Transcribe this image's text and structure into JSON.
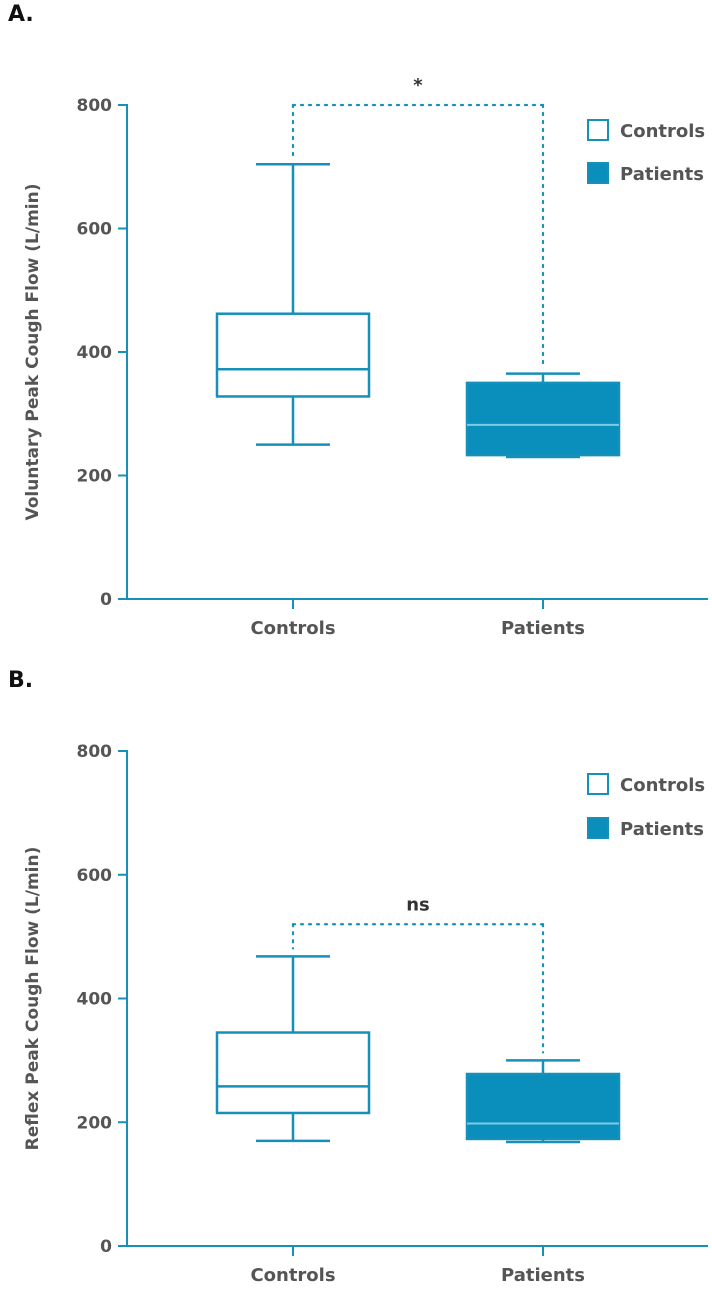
{
  "chart_data": [
    {
      "panel_label": "A.",
      "type": "boxplot",
      "ylabel": "Voluntary Peak Cough Flow (L/min)",
      "ylim": [
        0,
        800
      ],
      "yticks": [
        "0",
        "200",
        "400",
        "600",
        "800"
      ],
      "categories": [
        "Controls",
        "Patients"
      ],
      "series": [
        {
          "name": "Controls",
          "min": 250,
          "q1": 328,
          "median": 372,
          "q3": 462,
          "max": 704,
          "filled": false
        },
        {
          "name": "Patients",
          "min": 230,
          "q1": 233,
          "median": 282,
          "q3": 350,
          "max": 365,
          "filled": true
        }
      ],
      "significance": {
        "label": "*",
        "level": 800
      },
      "legend": {
        "position": "top-right",
        "items": [
          "Controls",
          "Patients"
        ]
      }
    },
    {
      "panel_label": "B.",
      "type": "boxplot",
      "ylabel": "Reflex Peak Cough Flow (L/min)",
      "ylim": [
        0,
        800
      ],
      "yticks": [
        "0",
        "200",
        "400",
        "600",
        "800"
      ],
      "categories": [
        "Controls",
        "Patients"
      ],
      "series": [
        {
          "name": "Controls",
          "min": 170,
          "q1": 215,
          "median": 258,
          "q3": 345,
          "max": 468,
          "filled": false
        },
        {
          "name": "Patients",
          "min": 168,
          "q1": 173,
          "median": 198,
          "q3": 278,
          "max": 300,
          "filled": true
        }
      ],
      "significance": {
        "label": "ns",
        "level": 520
      },
      "legend": {
        "position": "top-right",
        "items": [
          "Controls",
          "Patients"
        ]
      }
    }
  ],
  "colors": {
    "stroke": "#1790b9",
    "fill": "#0a8ebc",
    "median_on_fill": "#7fcbe3",
    "text": "#555555"
  }
}
